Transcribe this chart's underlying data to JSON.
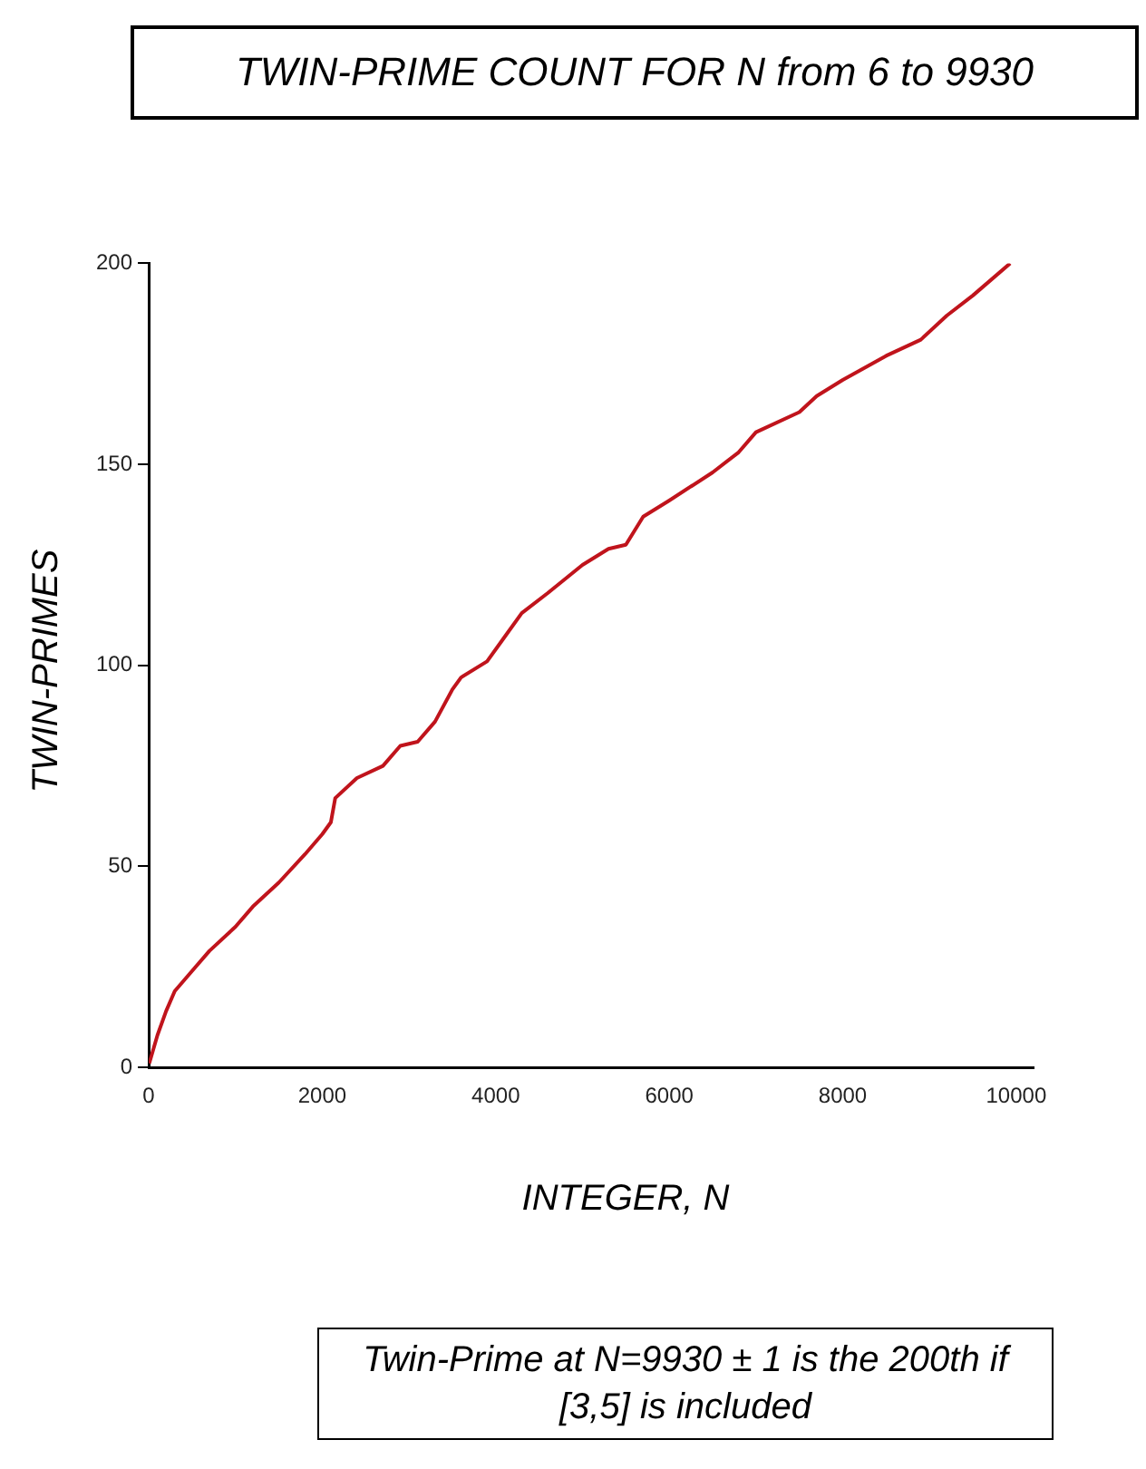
{
  "chart_data": {
    "type": "line",
    "title": "TWIN-PRIME COUNT FOR  N from 6 to 9930",
    "xlabel": "INTEGER, N",
    "ylabel": "TWIN-PRIMES",
    "annotations": [
      "Twin-Prime at N=9930 ± 1 is the 200th if [3,5] is included"
    ],
    "series": [
      {
        "color": "#c0141c",
        "x": [
          6,
          100,
          200,
          300,
          500,
          700,
          1000,
          1200,
          1500,
          1800,
          2000,
          2100,
          2150,
          2400,
          2700,
          2900,
          3100,
          3300,
          3500,
          3600,
          3900,
          4100,
          4300,
          4600,
          5000,
          5300,
          5500,
          5700,
          6000,
          6500,
          6800,
          7000,
          7500,
          7700,
          8000,
          8500,
          8900,
          9200,
          9500,
          9930
        ],
        "values": [
          1,
          8,
          14,
          19,
          24,
          29,
          35,
          40,
          46,
          53,
          58,
          61,
          67,
          72,
          75,
          80,
          81,
          86,
          94,
          97,
          101,
          107,
          113,
          118,
          125,
          129,
          130,
          137,
          141,
          148,
          153,
          158,
          163,
          167,
          171,
          177,
          181,
          187,
          192,
          200
        ]
      }
    ],
    "xlim": [
      0,
      10200
    ],
    "xticks": [
      0,
      2000,
      4000,
      6000,
      8000,
      10000
    ],
    "ylim": [
      0,
      200
    ],
    "yticks": [
      0,
      50,
      100,
      150,
      200
    ],
    "grid": false,
    "legend": false,
    "marker": "none",
    "line_style": "solid"
  }
}
